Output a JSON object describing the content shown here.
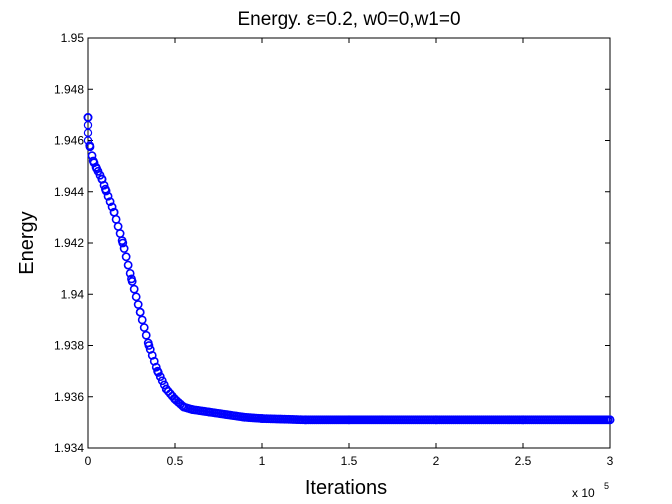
{
  "chart_data": {
    "type": "scatter",
    "title": "Energy.   ε=0.2, w0=0,w1=0",
    "xlabel": "Iterations",
    "ylabel": "Energy",
    "x_multiplier_label": "x 10",
    "x_multiplier_exponent": "5",
    "xlim": [
      0,
      3
    ],
    "ylim": [
      1.934,
      1.95
    ],
    "xticks": [
      "0",
      "0.5",
      "1",
      "1.5",
      "2",
      "2.5",
      "3"
    ],
    "yticks": [
      "1.934",
      "1.936",
      "1.938",
      "1.94",
      "1.942",
      "1.944",
      "1.946",
      "1.948",
      "1.95"
    ],
    "grid": false,
    "marker_color": "#0000ff",
    "series": [
      {
        "x": [
          0,
          0.01,
          0.03,
          0.05,
          0.08,
          0.1,
          0.15,
          0.2,
          0.25,
          0.3,
          0.35,
          0.4,
          0.45,
          0.5,
          0.55,
          0.6,
          0.7,
          0.8,
          0.9,
          1.0,
          1.25,
          1.5,
          2.0,
          2.5,
          3.0
        ],
        "y": [
          1.9469,
          1.9458,
          1.9452,
          1.9449,
          1.9445,
          1.9441,
          1.9432,
          1.942,
          1.9406,
          1.9393,
          1.938,
          1.937,
          1.9363,
          1.9359,
          1.9356,
          1.9355,
          1.9354,
          1.9353,
          1.9352,
          1.93515,
          1.9351,
          1.9351,
          1.9351,
          1.9351,
          1.9351
        ]
      }
    ]
  }
}
